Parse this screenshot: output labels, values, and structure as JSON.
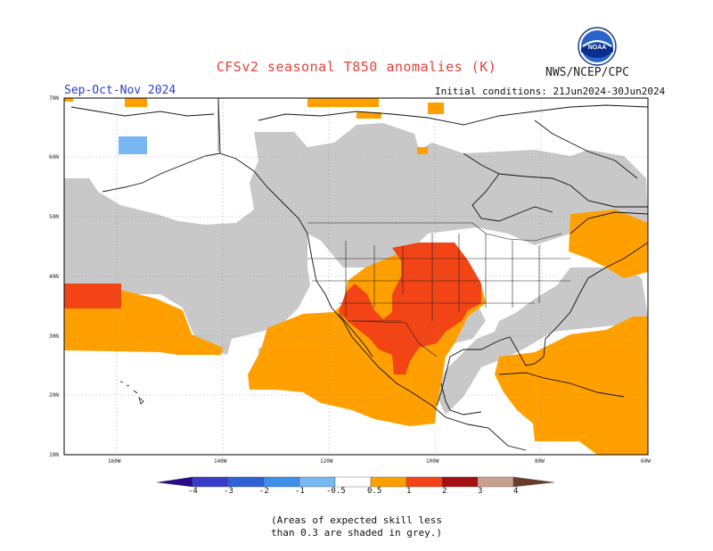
{
  "title": "CFSv2 seasonal T850 anomalies (K)",
  "agency": "NWS/NCEP/CPC",
  "logo_text": "NOAA",
  "period": "Sep-Oct-Nov 2024",
  "initial_conditions": "Initial conditions: 21Jun2024-30Jun2024",
  "lat_labels": [
    "70N",
    "60N",
    "50N",
    "40N",
    "30N",
    "20N",
    "10N"
  ],
  "lon_labels": [
    "160W",
    "140W",
    "120W",
    "100W",
    "80W",
    "60W"
  ],
  "colorbar": {
    "labels": [
      "-4",
      "-3",
      "-2",
      "-1",
      "-0.5",
      "0.5",
      "1",
      "2",
      "3",
      "4"
    ],
    "colors": {
      "lt-4": "#2a0a8a",
      "-4:-3": "#3a3cc8",
      "-3:-2": "#2f62d6",
      "-2:-1": "#3d8fe8",
      "-1:-0.5": "#77b8f2",
      "-0.5:0.5": "#ffffff",
      "0.5:1": "#ffa000",
      "1:2": "#f24414",
      "2:3": "#a50f12",
      "3:4": "#c8a090",
      "gt4": "#6a3a2a"
    }
  },
  "shading": {
    "grey": "#c8c8c8",
    "orange": "#ffa000",
    "red": "#f24414",
    "blue": "#77b8f2"
  },
  "note_line1": "(Areas of expected skill less",
  "note_line2": "than 0.3 are shaded in grey.)"
}
